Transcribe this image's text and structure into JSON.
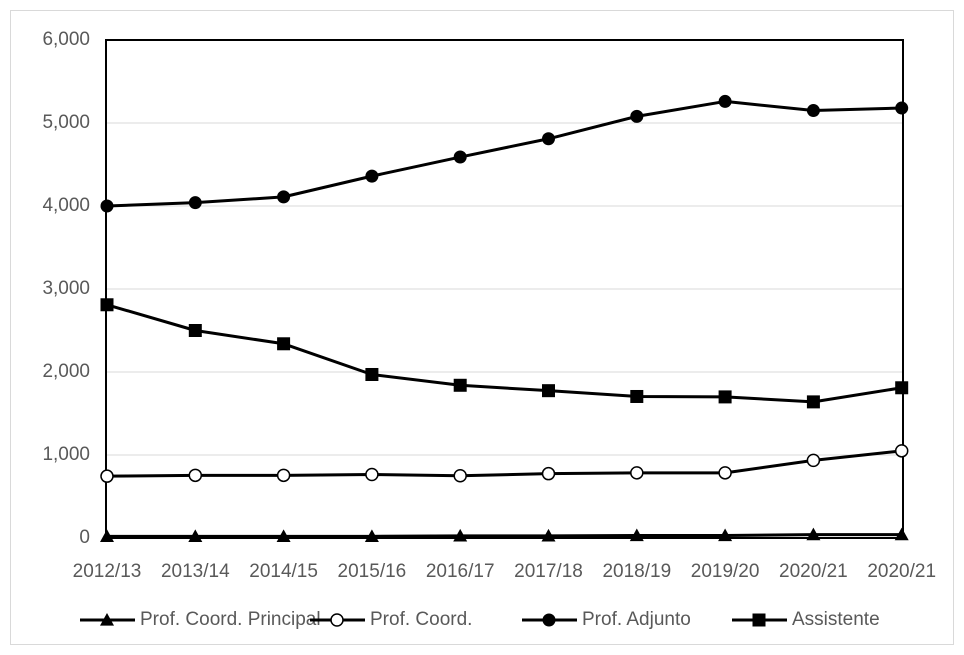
{
  "chart_data": {
    "type": "line",
    "title": "",
    "xlabel": "",
    "ylabel": "",
    "categories": [
      "2012/13",
      "2013/14",
      "2014/15",
      "2015/16",
      "2016/17",
      "2017/18",
      "2018/19",
      "2019/20",
      "2020/21",
      "2020/21"
    ],
    "ylim": [
      0,
      6000
    ],
    "yticks": [
      "0",
      "1,000",
      "2,000",
      "3,000",
      "4,000",
      "5,000",
      "6,000"
    ],
    "grid": true,
    "legend_position": "bottom",
    "series": [
      {
        "name": "Prof. Coord. Principal",
        "marker": "filled-triangle",
        "values": [
          20,
          20,
          20,
          20,
          25,
          25,
          30,
          30,
          40,
          40
        ]
      },
      {
        "name": "Prof. Coord.",
        "marker": "open-circle",
        "values": [
          745,
          755,
          755,
          765,
          750,
          775,
          785,
          785,
          935,
          1050
        ]
      },
      {
        "name": "Prof. Adjunto",
        "marker": "filled-circle",
        "values": [
          4000,
          4040,
          4110,
          4360,
          4590,
          4810,
          5080,
          5260,
          5150,
          5180
        ]
      },
      {
        "name": "Assistente",
        "marker": "filled-square",
        "values": [
          2810,
          2500,
          2340,
          1970,
          1840,
          1775,
          1705,
          1700,
          1640,
          1810
        ]
      }
    ]
  },
  "colors": {
    "series": "#000000",
    "grid": "#d9d9d9",
    "text": "#595959",
    "border": "#d9d9d9"
  }
}
